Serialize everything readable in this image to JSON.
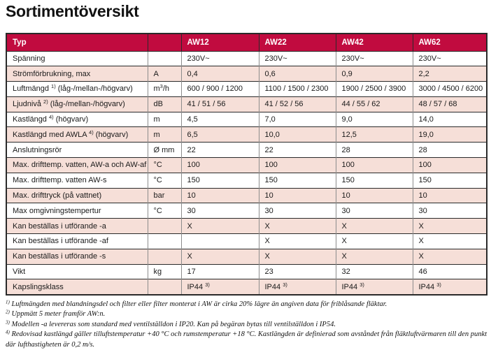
{
  "title": "Sortimentöversikt",
  "colors": {
    "header_bg": "#C10B3F",
    "header_text": "#FFFFFF",
    "row_pink": "#F6DFD8",
    "row_white": "#FFFFFF",
    "grid_dark": "#2A2A2A",
    "grid_gray": "#8C8C8C",
    "text": "#1A1A1A"
  },
  "table": {
    "columns": [
      "Typ",
      "",
      "AW12",
      "AW22",
      "AW42",
      "AW62"
    ],
    "rows": [
      {
        "label": "Spänning",
        "unit": "",
        "values": [
          "230V~",
          "230V~",
          "230V~",
          "230V~"
        ]
      },
      {
        "label": "Strömförbrukning, max",
        "unit": "A",
        "values": [
          "0,4",
          "0,6",
          "0,9",
          "2,2"
        ]
      },
      {
        "label": "Luftmängd [[1)]] (låg-/mellan-/högvarv)",
        "unit": "m[[3]]/h",
        "values": [
          "600 / 900 / 1200",
          "1100 / 1500 / 2300",
          "1900 / 2500 / 3900",
          "3000 / 4500 / 6200"
        ]
      },
      {
        "label": "Ljudnivå [[2)]] (låg-/mellan-/högvarv)",
        "unit": "dB",
        "values": [
          "41 / 51 / 56",
          "41 / 52 / 56",
          "44 / 55 / 62",
          "48 / 57 / 68"
        ]
      },
      {
        "label": "Kastlängd [[4)]] (högvarv)",
        "unit": "m",
        "values": [
          "4,5",
          "7,0",
          "9,0",
          "14,0"
        ]
      },
      {
        "label": "Kastlängd med AWLA [[4)]] (högvarv)",
        "unit": "m",
        "values": [
          "6,5",
          "10,0",
          "12,5",
          "19,0"
        ]
      },
      {
        "label": "Anslutningsrör",
        "unit": "Ø mm",
        "values": [
          "22",
          "22",
          "28",
          "28"
        ]
      },
      {
        "label": "Max. drifttemp. vatten, AW-a och AW-af",
        "unit": "°C",
        "values": [
          "100",
          "100",
          "100",
          "100"
        ]
      },
      {
        "label": "Max. drifttemp. vatten AW-s",
        "unit": "°C",
        "values": [
          "150",
          "150",
          "150",
          "150"
        ]
      },
      {
        "label": "Max. drifttryck (på vattnet)",
        "unit": "bar",
        "values": [
          "10",
          "10",
          "10",
          "10"
        ]
      },
      {
        "label": "Max omgivningstempertur",
        "unit": "°C",
        "values": [
          "30",
          "30",
          "30",
          "30"
        ]
      },
      {
        "label": "Kan beställas i utförande -a",
        "unit": "",
        "values": [
          "X",
          "X",
          "X",
          "X"
        ]
      },
      {
        "label": "Kan beställas i utförande -af",
        "unit": "",
        "values": [
          "",
          "X",
          "X",
          "X"
        ]
      },
      {
        "label": "Kan beställas i utförande -s",
        "unit": "",
        "values": [
          "X",
          "X",
          "X",
          "X"
        ]
      },
      {
        "label": "Vikt",
        "unit": "kg",
        "values": [
          "17",
          "23",
          "32",
          "46"
        ]
      },
      {
        "label": "Kapslingsklass",
        "unit": "",
        "values": [
          "IP44 [[3)]]",
          "IP44 [[3)]]",
          "IP44 [[3)]]",
          "IP44 [[3)]]"
        ]
      }
    ]
  },
  "footnotes": [
    "[[1)]] Luftmängden med blandningsdel och filter eller filter monterat i AW är cirka 20% lägre än angiven data för friblåsande fläktar.",
    "[[2)]] Uppmätt 5 meter framför AW:n.",
    "[[3)]] Modellen -a levereras som standard med ventilställdon i IP20. Kan på begäran bytas till ventilställdon i IP54.",
    "[[4)]] Redovisad kastlängd gäller tilluftstemperatur +40 °C och rumstemperatur +18 °C. Kastlängden är definierad som avståndet från fläktluftvärmaren till den punkt där lufthastigheten är 0,2 m/s."
  ]
}
